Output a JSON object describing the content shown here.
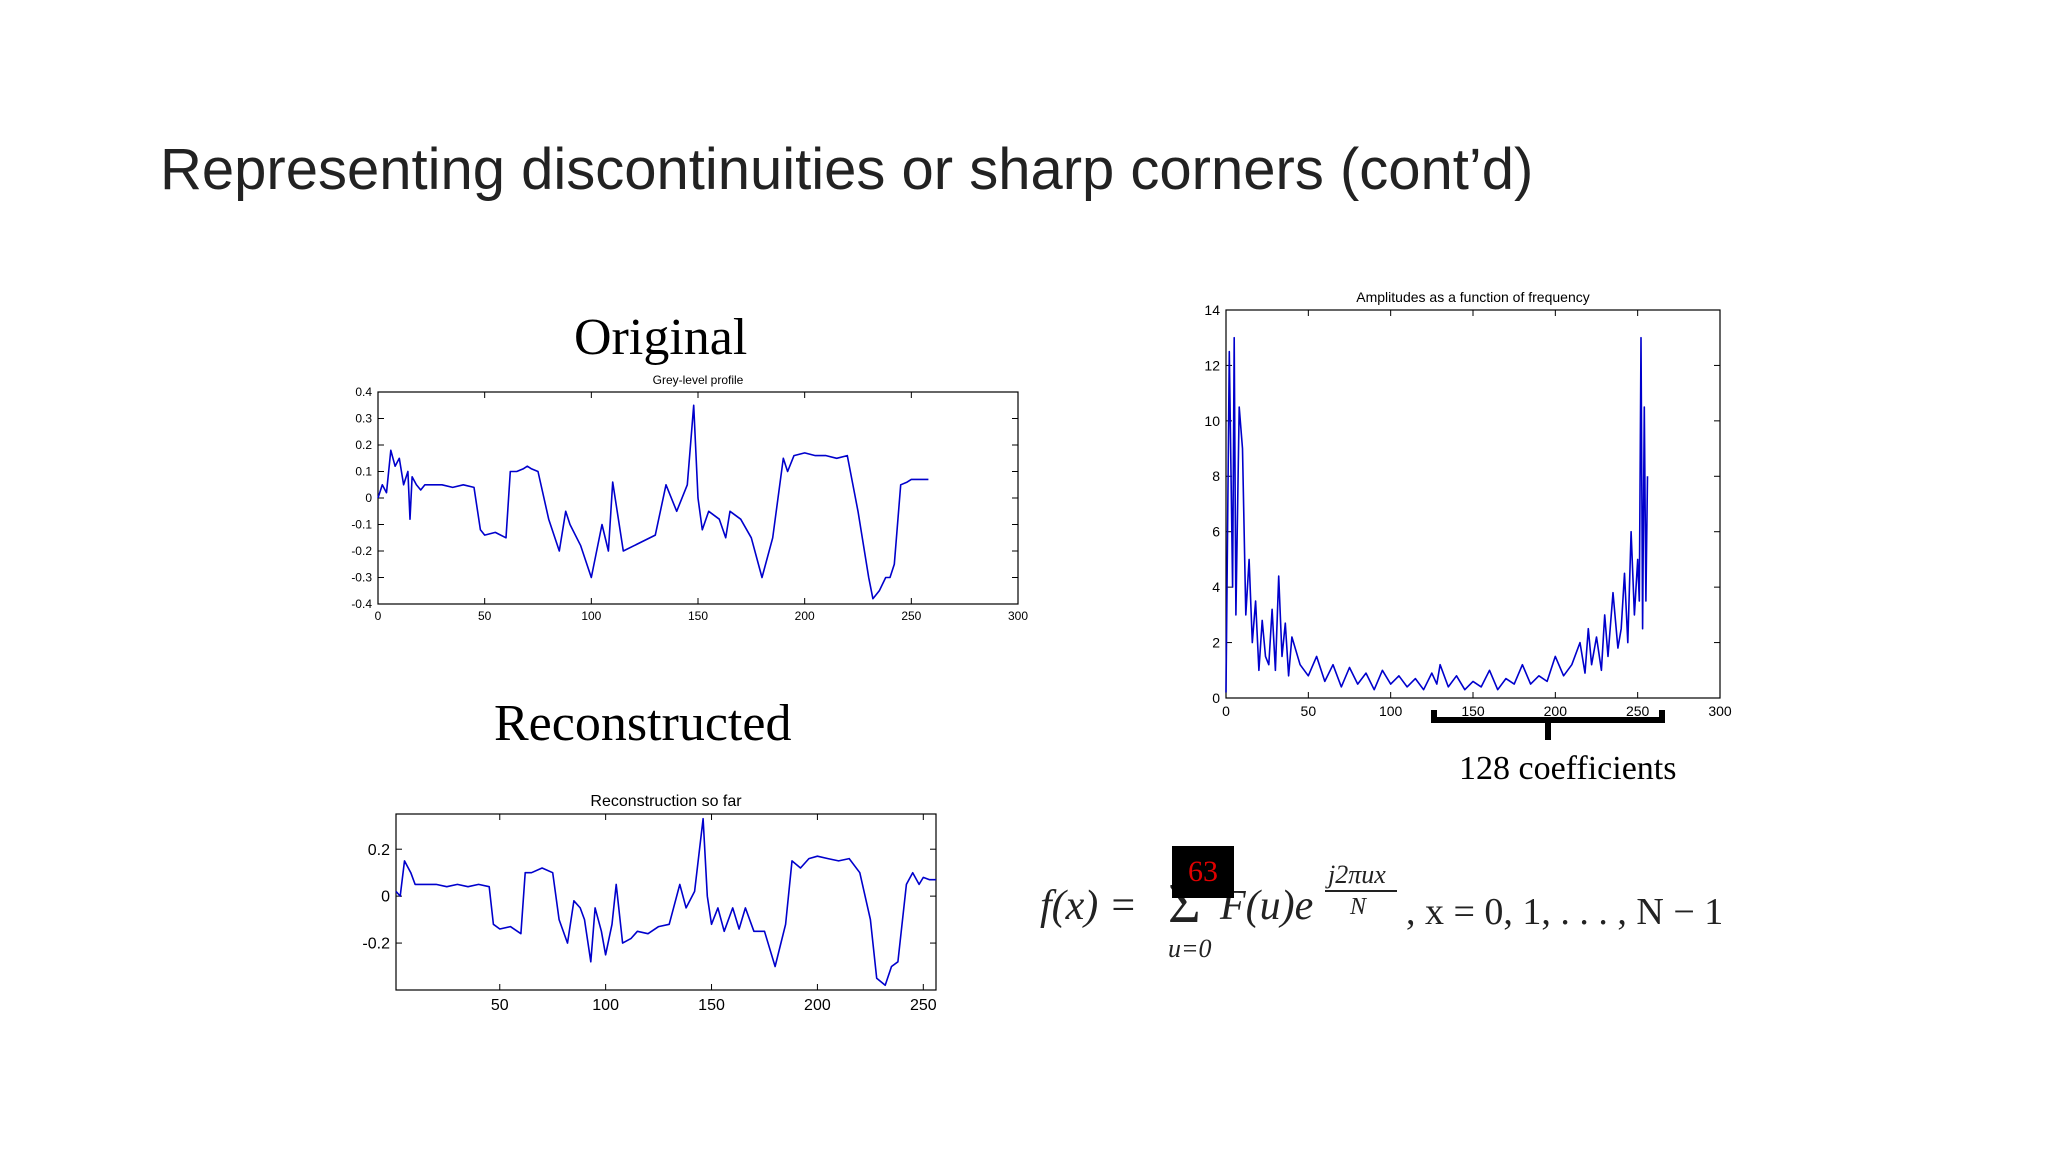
{
  "slide": {
    "title": "Representing discontinuities or sharp corners (cont’d)",
    "label_original": "Original",
    "label_reconstructed": "Reconstructed",
    "coefficients_label": "128 coefficients",
    "formula": {
      "lhs": "f(x) =",
      "sigma": "Σ",
      "upper": "63",
      "lower": "u=0",
      "term": "F(u)e",
      "exp_numerator": "j2πux",
      "exp_denominator": "N",
      "tail": ", x = 0, 1, . . . , N − 1"
    }
  },
  "colors": {
    "line": "#0000cc",
    "axis": "#000000",
    "box": "#000000",
    "box_text": "#e00000"
  },
  "chart_data": [
    {
      "type": "line",
      "title": "Grey-level profile",
      "xlim": [
        0,
        300
      ],
      "ylim": [
        -0.4,
        0.4
      ],
      "xticks": [
        "0",
        "50",
        "100",
        "150",
        "200",
        "250",
        "300"
      ],
      "yticks": [
        "0.4",
        "0.3",
        "0.2",
        "0.1",
        "0",
        "-0.1",
        "-0.2",
        "-0.3",
        "-0.4"
      ],
      "series": [
        {
          "x": [
            0,
            2,
            4,
            6,
            8,
            10,
            12,
            14,
            15,
            16,
            18,
            20,
            22,
            25,
            30,
            35,
            40,
            45,
            48,
            50,
            55,
            60,
            62,
            65,
            68,
            70,
            72,
            75,
            80,
            85,
            88,
            90,
            95,
            100,
            105,
            108,
            110,
            115,
            120,
            125,
            130,
            135,
            140,
            145,
            148,
            150,
            152,
            155,
            160,
            163,
            165,
            170,
            175,
            180,
            185,
            190,
            192,
            195,
            200,
            205,
            210,
            215,
            220,
            225,
            230,
            232,
            235,
            238,
            240,
            242,
            245,
            248,
            250,
            252,
            255,
            258
          ],
          "y": [
            0.0,
            0.05,
            0.02,
            0.18,
            0.12,
            0.15,
            0.05,
            0.1,
            -0.08,
            0.08,
            0.05,
            0.03,
            0.05,
            0.05,
            0.05,
            0.04,
            0.05,
            0.04,
            -0.12,
            -0.14,
            -0.13,
            -0.15,
            0.1,
            0.1,
            0.11,
            0.12,
            0.11,
            0.1,
            -0.08,
            -0.2,
            -0.05,
            -0.1,
            -0.18,
            -0.3,
            -0.1,
            -0.2,
            0.06,
            -0.2,
            -0.18,
            -0.16,
            -0.14,
            0.05,
            -0.05,
            0.05,
            0.35,
            0.0,
            -0.12,
            -0.05,
            -0.08,
            -0.15,
            -0.05,
            -0.08,
            -0.15,
            -0.3,
            -0.15,
            0.15,
            0.1,
            0.16,
            0.17,
            0.16,
            0.16,
            0.15,
            0.16,
            -0.05,
            -0.3,
            -0.38,
            -0.35,
            -0.3,
            -0.3,
            -0.25,
            0.05,
            0.06,
            0.07,
            0.07,
            0.07,
            0.07
          ]
        }
      ]
    },
    {
      "type": "line",
      "title": "Reconstruction so far",
      "xlim": [
        1,
        256
      ],
      "ylim": [
        -0.4,
        0.35
      ],
      "xticks": [
        "50",
        "100",
        "150",
        "200",
        "250"
      ],
      "yticks": [
        "0.2",
        "0",
        "-0.2"
      ],
      "series": [
        {
          "x": [
            1,
            3,
            5,
            8,
            10,
            15,
            20,
            25,
            30,
            35,
            40,
            45,
            47,
            50,
            55,
            60,
            62,
            65,
            70,
            75,
            78,
            82,
            85,
            88,
            90,
            93,
            95,
            98,
            100,
            103,
            105,
            108,
            112,
            115,
            120,
            125,
            130,
            135,
            138,
            142,
            146,
            148,
            150,
            153,
            156,
            160,
            163,
            166,
            170,
            175,
            180,
            185,
            188,
            192,
            196,
            200,
            205,
            210,
            215,
            220,
            225,
            228,
            232,
            235,
            238,
            242,
            245,
            248,
            250,
            253,
            256
          ],
          "y": [
            0.02,
            0.0,
            0.15,
            0.1,
            0.05,
            0.05,
            0.05,
            0.04,
            0.05,
            0.04,
            0.05,
            0.04,
            -0.12,
            -0.14,
            -0.13,
            -0.16,
            0.1,
            0.1,
            0.12,
            0.1,
            -0.1,
            -0.2,
            -0.02,
            -0.05,
            -0.1,
            -0.28,
            -0.05,
            -0.15,
            -0.25,
            -0.12,
            0.05,
            -0.2,
            -0.18,
            -0.15,
            -0.16,
            -0.13,
            -0.12,
            0.05,
            -0.05,
            0.02,
            0.33,
            0.0,
            -0.12,
            -0.05,
            -0.15,
            -0.05,
            -0.14,
            -0.05,
            -0.15,
            -0.15,
            -0.3,
            -0.12,
            0.15,
            0.12,
            0.16,
            0.17,
            0.16,
            0.15,
            0.16,
            0.1,
            -0.1,
            -0.35,
            -0.38,
            -0.3,
            -0.28,
            0.05,
            0.1,
            0.05,
            0.08,
            0.07,
            0.07
          ]
        }
      ]
    },
    {
      "type": "line",
      "title": "Amplitudes as a function of frequency",
      "xlim": [
        0,
        300
      ],
      "ylim": [
        0,
        14
      ],
      "xticks": [
        "0",
        "50",
        "100",
        "150",
        "200",
        "250",
        "300"
      ],
      "yticks": [
        "0",
        "2",
        "4",
        "6",
        "8",
        "10",
        "12",
        "14"
      ],
      "series": [
        {
          "x": [
            0,
            2,
            4,
            5,
            6,
            8,
            10,
            12,
            14,
            16,
            18,
            20,
            22,
            24,
            26,
            28,
            30,
            32,
            34,
            36,
            38,
            40,
            45,
            50,
            55,
            60,
            65,
            70,
            75,
            80,
            85,
            90,
            95,
            100,
            105,
            110,
            115,
            120,
            125,
            128,
            130,
            135,
            140,
            145,
            150,
            155,
            160,
            165,
            170,
            175,
            180,
            185,
            190,
            195,
            200,
            205,
            210,
            215,
            218,
            220,
            222,
            225,
            228,
            230,
            232,
            235,
            238,
            240,
            242,
            244,
            246,
            248,
            250,
            251,
            252,
            253,
            254,
            255,
            256
          ],
          "y": [
            0.2,
            12.5,
            4,
            13,
            3,
            10.5,
            9,
            3,
            5,
            2,
            3.5,
            1,
            2.8,
            1.5,
            1.2,
            3.2,
            1,
            4.4,
            1.5,
            2.7,
            0.8,
            2.2,
            1.2,
            0.8,
            1.5,
            0.6,
            1.2,
            0.4,
            1.1,
            0.5,
            0.9,
            0.3,
            1.0,
            0.5,
            0.8,
            0.4,
            0.7,
            0.3,
            0.9,
            0.5,
            1.2,
            0.4,
            0.8,
            0.3,
            0.6,
            0.4,
            1.0,
            0.3,
            0.7,
            0.5,
            1.2,
            0.5,
            0.8,
            0.6,
            1.5,
            0.8,
            1.2,
            2.0,
            0.9,
            2.5,
            1.2,
            2.2,
            1.0,
            3.0,
            1.5,
            3.8,
            1.8,
            2.5,
            4.5,
            2.0,
            6.0,
            3.0,
            5.0,
            3.5,
            13,
            2.5,
            10.5,
            3.5,
            8.0
          ]
        }
      ]
    }
  ]
}
